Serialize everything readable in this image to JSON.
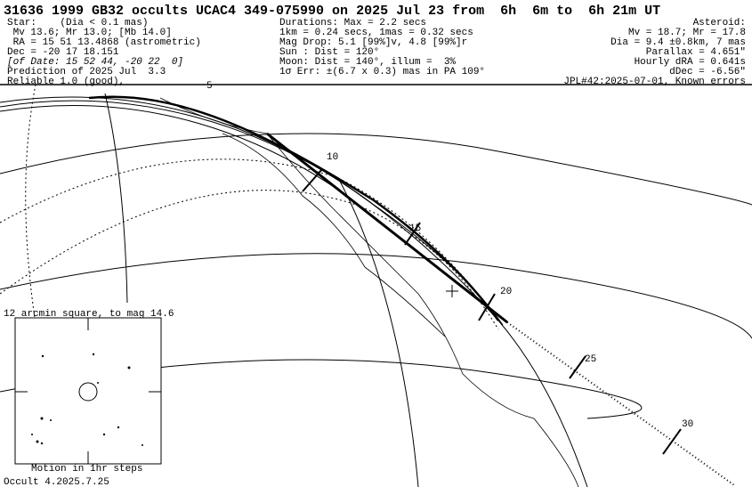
{
  "header": {
    "title": "31636 1999 GB32 occults UCAC4 349-075990 on 2025 Jul 23 from  6h  6m to  6h 21m UT",
    "left": [
      "Star:    (Dia < 0.1 mas)",
      " Mv 13.6; Mr 13.0; [Mb 14.0]",
      " RA = 15 51 13.4868 (astrometric)",
      "Dec = -20 17 18.151",
      "[of Date: 15 52 44, -20 22  0]",
      "Prediction of 2025 Jul  3.3",
      "Reliable 1.0 (good),"
    ],
    "middle": [
      "Durations: Max = 2.2 secs",
      "1km = 0.24 secs, 1mas = 0.32 secs",
      "Mag Drop: 5.1 [99%]v, 4.8 [99%]r",
      "Sun : Dist = 120°",
      "Moon: Dist = 140°, illum =  3%",
      "1σ Err: ±(6.7 x 0.3) mas in PA 109°"
    ],
    "right": [
      "Asteroid:",
      "Mv = 18.7; Mr = 17.8",
      "Dia = 9.4 ±0.8km, 7 mas",
      "Parallax = 4.651\"",
      "Hourly dRA = 0.641s",
      "dDec = -6.56\"",
      "JPL#42:2025-07-01, Known errors"
    ]
  },
  "map": {
    "time_labels": [
      "5",
      "10",
      "15",
      "20",
      "25",
      "30"
    ]
  },
  "inset": {
    "caption": "12 arcmin square, to mag 14.6",
    "footer": "Motion in 1hr steps"
  },
  "footer": {
    "version": "Occult 4.2025.7.25"
  }
}
